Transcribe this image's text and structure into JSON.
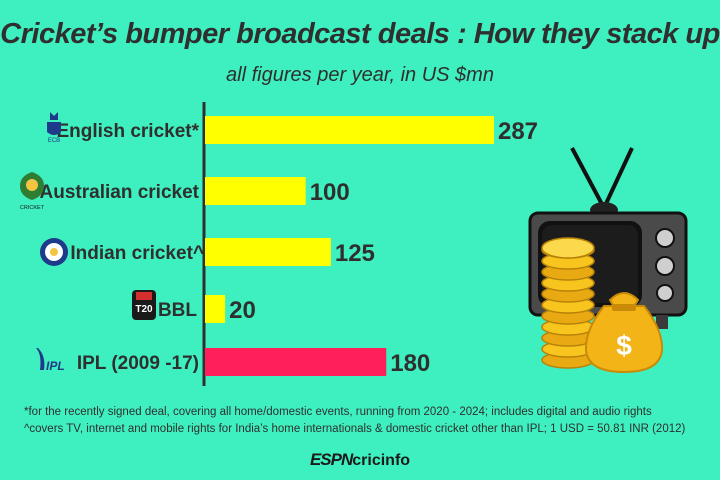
{
  "header": {
    "title": "Cricket’s bumper broadcast deals : How they stack up",
    "subtitle": "all figures per year, in US $mn"
  },
  "chart_data": {
    "type": "bar",
    "orientation": "horizontal",
    "categories": [
      "English cricket*",
      "Australian cricket",
      "Indian cricket^",
      "BBL",
      "IPL (2009 -17)"
    ],
    "values": [
      287,
      100,
      125,
      20,
      180
    ],
    "value_labels": [
      "287",
      "100",
      "125",
      "20",
      "180"
    ],
    "colors": [
      "#ffff00",
      "#ffff00",
      "#ffff00",
      "#ffff00",
      "#ff1f5a"
    ],
    "title": "Cricket’s bumper broadcast deals : How they stack up",
    "subtitle": "all figures per year, in US $mn",
    "xlim": [
      0,
      290
    ],
    "grid": false,
    "legend": "none"
  },
  "logos": {
    "ecb_text": "ECB",
    "ca_text": "CRICKET",
    "bbl_text": "T20",
    "ipl_text": "IPL"
  },
  "notes": [
    "*for the recently signed deal, covering all home/domestic events, running from 2020 - 2024; includes digital and audio rights",
    "^covers TV, internet and mobile rights for India’s home internationals & domestic cricket other than IPL; 1 USD = 50.81 INR (2012)"
  ],
  "brand": {
    "espn": "ESPN",
    "cricinfo": "cricinfo"
  },
  "illustration": {
    "tv_icon": "television-icon",
    "coins_icon": "coin-stack-icon",
    "bag_icon": "money-bag-icon",
    "bag_symbol": "$"
  }
}
